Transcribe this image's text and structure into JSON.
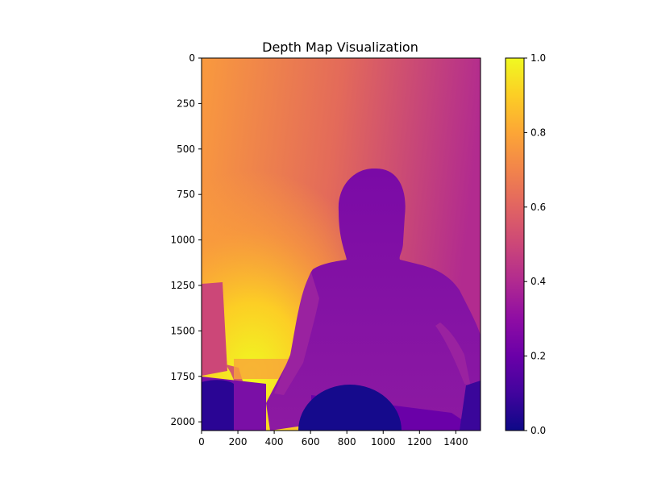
{
  "chart_data": {
    "type": "heatmap",
    "title": "Depth Map Visualization",
    "colormap": "plasma",
    "x_range": [
      0,
      1536
    ],
    "y_range": [
      0,
      2048
    ],
    "x_ticks": [
      0,
      200,
      400,
      600,
      800,
      1000,
      1200,
      1400
    ],
    "y_ticks": [
      0,
      250,
      500,
      750,
      1000,
      1250,
      1500,
      1750,
      2000
    ],
    "y_inverted": true,
    "colorbar": {
      "range": [
        0,
        1
      ],
      "ticks": [
        "0.0",
        "0.2",
        "0.4",
        "0.6",
        "0.8",
        "1.0"
      ]
    }
  }
}
